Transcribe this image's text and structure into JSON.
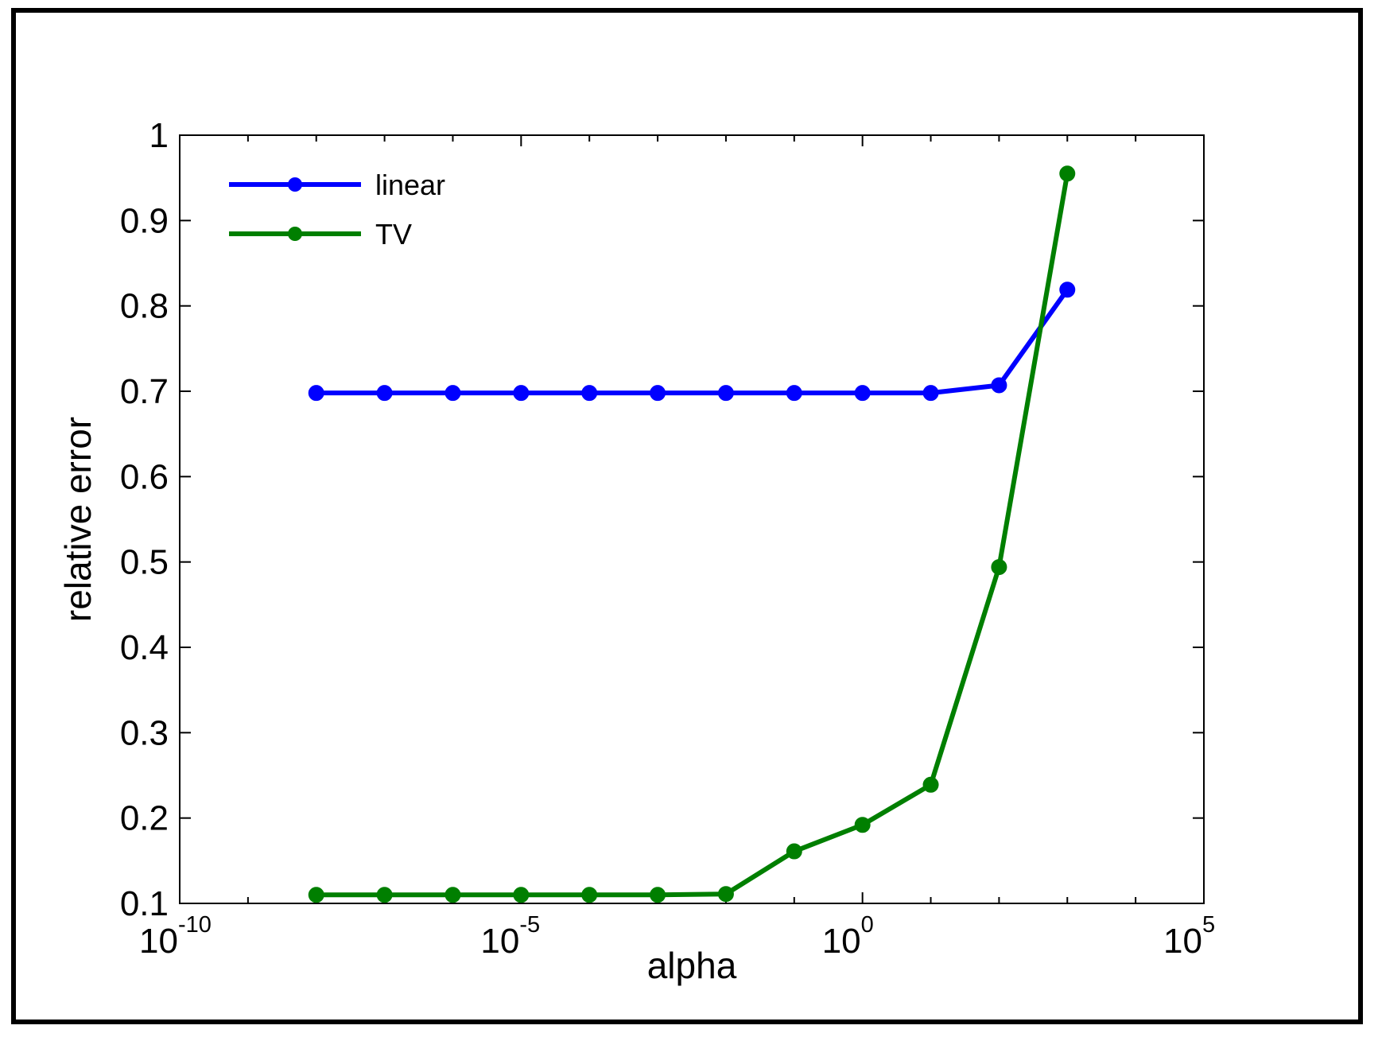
{
  "chart_data": {
    "type": "line",
    "title": "",
    "xlabel": "alpha",
    "ylabel": "relative error",
    "xscale": "log",
    "xlim": [
      1e-10,
      100000
    ],
    "ylim": [
      0.1,
      1
    ],
    "xticks": [
      {
        "base": "10",
        "exp": "-10",
        "value": 1e-10
      },
      {
        "base": "10",
        "exp": "-5",
        "value": 1e-05
      },
      {
        "base": "10",
        "exp": "0",
        "value": 1
      },
      {
        "base": "10",
        "exp": "5",
        "value": 100000
      }
    ],
    "yticks": [
      "0.1",
      "0.2",
      "0.3",
      "0.4",
      "0.5",
      "0.6",
      "0.7",
      "0.8",
      "0.9",
      "1"
    ],
    "grid": false,
    "legend_position": "top-left",
    "x": [
      1e-08,
      1e-07,
      1e-06,
      1e-05,
      0.0001,
      0.001,
      0.01,
      0.1,
      1,
      10,
      100,
      1000
    ],
    "series": [
      {
        "name": "linear",
        "color": "#0000ff",
        "values": [
          0.698,
          0.698,
          0.698,
          0.698,
          0.698,
          0.698,
          0.698,
          0.698,
          0.698,
          0.698,
          0.707,
          0.819
        ]
      },
      {
        "name": "TV",
        "color": "#007f00",
        "values": [
          0.11,
          0.11,
          0.11,
          0.11,
          0.11,
          0.11,
          0.111,
          0.161,
          0.192,
          0.239,
          0.494,
          0.955
        ]
      }
    ]
  }
}
